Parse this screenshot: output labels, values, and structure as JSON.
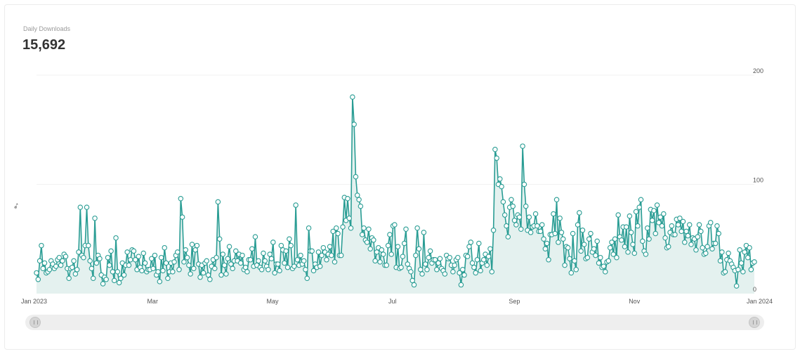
{
  "metric": {
    "label": "Daily Downloads",
    "value": "15,692"
  },
  "cursor_icon": "pointer-cursor-icon",
  "colors": {
    "line": "#2a9d94",
    "area": "#e4f1ef",
    "marker_fill": "#ffffff",
    "grid": "#f1f1f1"
  },
  "chart_data": {
    "type": "line",
    "title": "Daily Downloads",
    "x_start": "2023-01-01",
    "x_end": "2024-01-01",
    "xticks": [
      {
        "date": "2023-01-01",
        "label": "Jan 2023"
      },
      {
        "date": "2023-03-01",
        "label": "Mar"
      },
      {
        "date": "2023-05-01",
        "label": "May"
      },
      {
        "date": "2023-07-01",
        "label": "Jul"
      },
      {
        "date": "2023-09-01",
        "label": "Sep"
      },
      {
        "date": "2023-11-01",
        "label": "Nov"
      },
      {
        "date": "2024-01-01",
        "label": "Jan 2024"
      }
    ],
    "ylim": [
      0,
      200
    ],
    "yticks": [
      0,
      100,
      200
    ],
    "grid": true,
    "area_fill": true,
    "markers": true,
    "legend": "none",
    "series": [
      {
        "values": [
          19,
          13,
          30,
          44,
          23,
          28,
          19,
          20,
          22,
          30,
          27,
          23,
          25,
          31,
          33,
          26,
          30,
          36,
          34,
          23,
          14,
          23,
          24,
          30,
          18,
          22,
          38,
          79,
          35,
          33,
          44,
          79,
          44,
          30,
          23,
          14,
          69,
          28,
          35,
          32,
          17,
          9,
          15,
          13,
          33,
          26,
          39,
          20,
          12,
          51,
          20,
          10,
          14,
          28,
          17,
          26,
          38,
          26,
          31,
          40,
          39,
          31,
          22,
          34,
          24,
          21,
          37,
          28,
          20,
          22,
          22,
          32,
          23,
          35,
          17,
          20,
          11,
          33,
          21,
          42,
          28,
          14,
          20,
          28,
          20,
          29,
          35,
          38,
          22,
          87,
          70,
          29,
          40,
          33,
          26,
          18,
          45,
          23,
          40,
          44,
          27,
          15,
          26,
          19,
          28,
          30,
          17,
          13,
          25,
          31,
          23,
          33,
          84,
          50,
          17,
          36,
          26,
          18,
          32,
          43,
          27,
          23,
          30,
          39,
          30,
          36,
          28,
          35,
          22,
          24,
          20,
          31,
          31,
          41,
          25,
          52,
          26,
          30,
          24,
          22,
          37,
          30,
          25,
          22,
          36,
          32,
          47,
          19,
          27,
          27,
          21,
          44,
          40,
          28,
          39,
          24,
          50,
          44,
          23,
          25,
          81,
          31,
          26,
          35,
          27,
          30,
          22,
          14,
          60,
          39,
          39,
          21,
          27,
          24,
          38,
          25,
          35,
          42,
          38,
          31,
          36,
          43,
          35,
          57,
          29,
          60,
          55,
          35,
          35,
          61,
          88,
          67,
          87,
          69,
          60,
          180,
          155,
          107,
          90,
          86,
          80,
          54,
          60,
          49,
          47,
          59,
          41,
          51,
          49,
          30,
          38,
          42,
          29,
          40,
          36,
          26,
          26,
          44,
          54,
          36,
          62,
          63,
          24,
          43,
          23,
          24,
          34,
          46,
          59,
          27,
          23,
          20,
          12,
          8,
          35,
          60,
          41,
          22,
          18,
          56,
          27,
          22,
          33,
          39,
          28,
          31,
          31,
          22,
          28,
          32,
          23,
          21,
          18,
          35,
          32,
          33,
          26,
          20,
          26,
          31,
          33,
          19,
          8,
          22,
          17,
          35,
          34,
          43,
          47,
          28,
          24,
          19,
          31,
          46,
          21,
          28,
          31,
          36,
          26,
          34,
          41,
          20,
          58,
          132,
          124,
          100,
          105,
          98,
          84,
          72,
          62,
          52,
          79,
          86,
          80,
          67,
          63,
          72,
          70,
          59,
          135,
          100,
          80,
          58,
          70,
          56,
          61,
          62,
          73,
          62,
          57,
          57,
          63,
          50,
          41,
          46,
          31,
          54,
          54,
          73,
          55,
          86,
          47,
          69,
          56,
          50,
          26,
          43,
          42,
          32,
          19,
          55,
          30,
          22,
          63,
          74,
          39,
          58,
          45,
          32,
          33,
          50,
          55,
          38,
          41,
          35,
          48,
          28,
          33,
          24,
          25,
          20,
          29,
          30,
          42,
          47,
          36,
          50,
          33,
          72,
          52,
          49,
          61,
          43,
          61,
          38,
          71,
          56,
          45,
          37,
          75,
          62,
          79,
          86,
          48,
          39,
          36,
          60,
          50,
          77,
          67,
          76,
          55,
          81,
          65,
          70,
          62,
          73,
          51,
          42,
          43,
          56,
          62,
          54,
          54,
          68,
          63,
          69,
          57,
          66,
          47,
          57,
          53,
          63,
          45,
          51,
          50,
          40,
          52,
          63,
          57,
          42,
          36,
          37,
          43,
          62,
          65,
          41,
          46,
          46,
          62,
          55,
          30,
          38,
          19,
          20,
          31,
          37,
          30,
          27,
          24,
          21,
          7,
          22,
          40,
          28,
          20,
          38,
          44,
          33,
          42,
          22,
          28,
          29
        ]
      }
    ]
  },
  "slider": {
    "start_fraction": 0.0,
    "end_fraction": 1.0
  }
}
